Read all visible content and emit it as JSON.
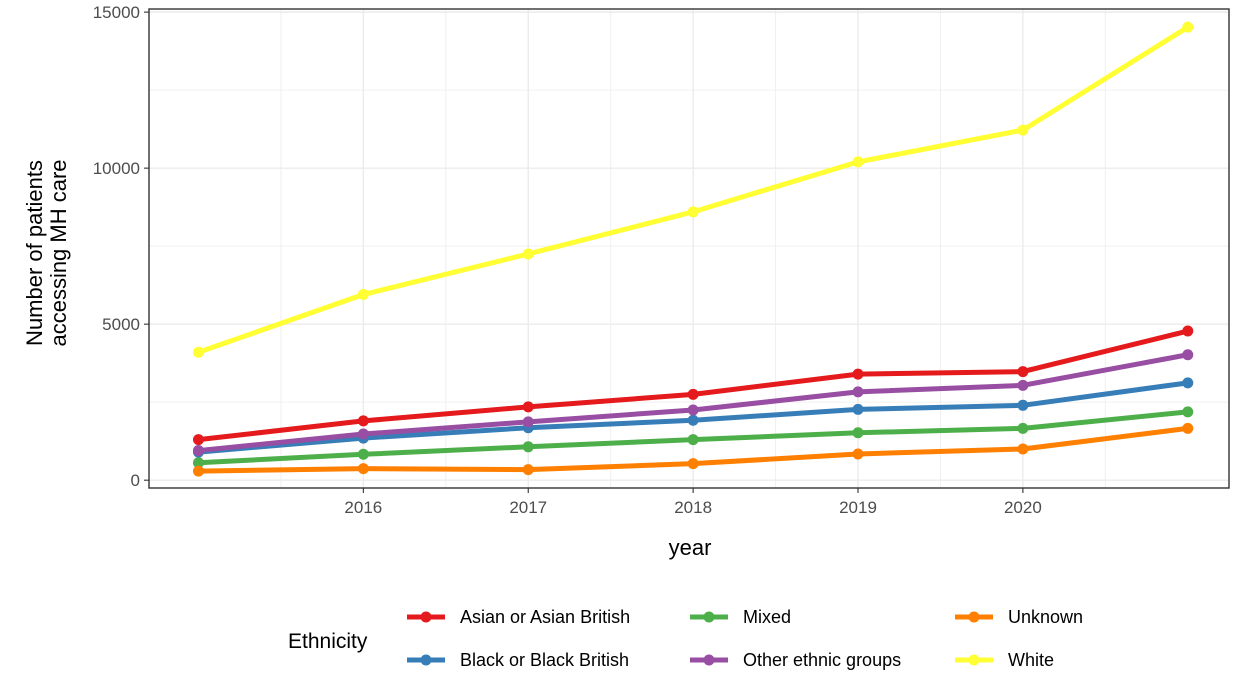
{
  "chart_data": {
    "type": "line",
    "xlabel": "year",
    "ylabel_lines": [
      "Number of patients",
      "accessing MH care"
    ],
    "x": [
      2015,
      2016,
      2017,
      2018,
      2019,
      2020,
      2021
    ],
    "x_ticks": [
      "2016",
      "2017",
      "2018",
      "2019",
      "2020"
    ],
    "y_ticks": [
      "0",
      "5000",
      "10000",
      "15000"
    ],
    "xlim": [
      2014.7,
      2021.25
    ],
    "ylim": [
      -250,
      15100
    ],
    "grid": true,
    "legend": {
      "title": "Ethnicity",
      "position": "bottom"
    },
    "series": [
      {
        "name": "Asian or Asian British",
        "color": "#E41A1C",
        "values": [
          1300,
          1900,
          2350,
          2750,
          3400,
          3480,
          4780
        ]
      },
      {
        "name": "Black or Black British",
        "color": "#377EB8",
        "values": [
          900,
          1350,
          1680,
          1920,
          2270,
          2400,
          3120
        ]
      },
      {
        "name": "Mixed",
        "color": "#4DAF4A",
        "values": [
          560,
          830,
          1070,
          1300,
          1520,
          1660,
          2190
        ]
      },
      {
        "name": "Other ethnic groups",
        "color": "#984EA3",
        "values": [
          950,
          1480,
          1870,
          2250,
          2830,
          3040,
          4020
        ]
      },
      {
        "name": "Unknown",
        "color": "#FF7F00",
        "values": [
          290,
          370,
          340,
          530,
          840,
          1000,
          1660
        ]
      },
      {
        "name": "White",
        "color": "#FFFF33",
        "values": [
          4100,
          5950,
          7250,
          8600,
          10200,
          11220,
          14520
        ]
      }
    ]
  }
}
